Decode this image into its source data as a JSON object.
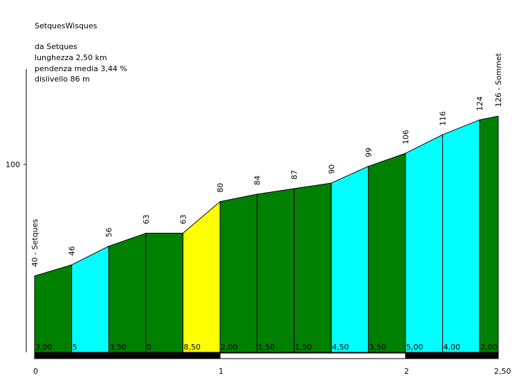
{
  "title": "SetquesWisques",
  "info": {
    "from": "da Setques",
    "length": "lunghezza 2,50 km",
    "gradient": "pendenza media 3,44 %",
    "elevation_gain": "dislivello 86 m"
  },
  "chart_data": {
    "type": "area",
    "title": "SetquesWisques",
    "xlabel": "",
    "ylabel": "",
    "x_unit": "km",
    "xlim": [
      0,
      2.5
    ],
    "x_ticks": [
      {
        "value": 0,
        "label": "0"
      },
      {
        "value": 1,
        "label": "1"
      },
      {
        "value": 2,
        "label": "2"
      },
      {
        "value": 2.5,
        "label": "2,50"
      }
    ],
    "y_ticks": [
      {
        "value": 100,
        "label": "100"
      }
    ],
    "points": [
      {
        "x": 0.0,
        "y": 40,
        "label": "40 - Setques"
      },
      {
        "x": 0.2,
        "y": 46,
        "label": "46"
      },
      {
        "x": 0.4,
        "y": 56,
        "label": "56"
      },
      {
        "x": 0.6,
        "y": 63,
        "label": "63"
      },
      {
        "x": 0.8,
        "y": 63,
        "label": "63"
      },
      {
        "x": 1.0,
        "y": 80,
        "label": "80"
      },
      {
        "x": 1.2,
        "y": 84,
        "label": "84"
      },
      {
        "x": 1.4,
        "y": 87,
        "label": "87"
      },
      {
        "x": 1.6,
        "y": 90,
        "label": "90"
      },
      {
        "x": 1.8,
        "y": 99,
        "label": "99"
      },
      {
        "x": 2.0,
        "y": 106,
        "label": "106"
      },
      {
        "x": 2.2,
        "y": 116,
        "label": "116"
      },
      {
        "x": 2.4,
        "y": 124,
        "label": "124"
      },
      {
        "x": 2.5,
        "y": 126,
        "label": "126 - Sommet"
      }
    ],
    "segments": [
      {
        "gradient_label": "3,00",
        "color": "#008000"
      },
      {
        "gradient_label": "5",
        "color": "#00ffff"
      },
      {
        "gradient_label": "3,50",
        "color": "#008000"
      },
      {
        "gradient_label": "0",
        "color": "#008000"
      },
      {
        "gradient_label": "8,50",
        "color": "#ffff00"
      },
      {
        "gradient_label": "2,00",
        "color": "#008000"
      },
      {
        "gradient_label": "1,50",
        "color": "#008000"
      },
      {
        "gradient_label": "1,50",
        "color": "#008000"
      },
      {
        "gradient_label": "4,50",
        "color": "#00ffff"
      },
      {
        "gradient_label": "3,50",
        "color": "#008000"
      },
      {
        "gradient_label": "5,00",
        "color": "#00ffff"
      },
      {
        "gradient_label": "4,00",
        "color": "#00ffff"
      },
      {
        "gradient_label": "2,00",
        "color": "#008000"
      }
    ],
    "km_bar": [
      {
        "from": 0,
        "to": 1,
        "color": "#000000"
      },
      {
        "from": 1,
        "to": 2,
        "color": "#ffffff"
      },
      {
        "from": 2,
        "to": 2.5,
        "color": "#000000"
      }
    ]
  }
}
